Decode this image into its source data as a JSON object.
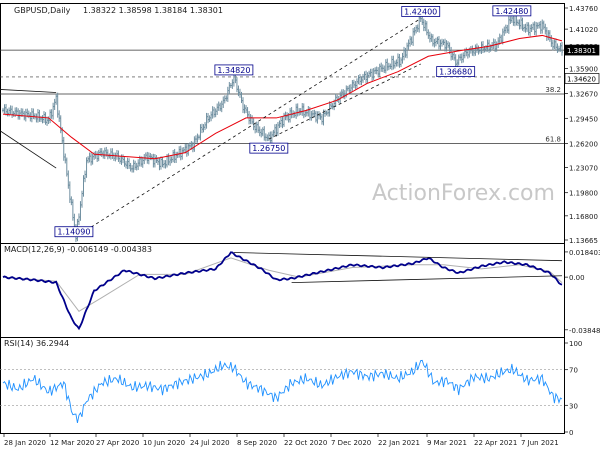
{
  "header": {
    "symbol": "GBPUSD,Daily",
    "ohlc": "1.38322 1.38598 1.38184 1.38301",
    "macd_label": "MACD(12,26,9) -0.006149 -0.004383",
    "rsi_label": "RSI(14) 36.2944",
    "watermark": "ActionForex.com"
  },
  "colors": {
    "bar": "#6f8fa0",
    "ma": "#e8000b",
    "macd": "#00008b",
    "signal": "#b0b0b0",
    "rsi": "#1e90ff",
    "text": "#1a1a1a",
    "label_box": "#00008b"
  },
  "chart_data": [
    {
      "type": "candlestick",
      "title": "GBPUSD,Daily",
      "ylim": [
        1.13665,
        1.4376
      ],
      "y_ticks": [
        "1.43760",
        "1.41020",
        "1.38830",
        "1.35900",
        "1.32670",
        "1.29450",
        "1.26200",
        "1.23070",
        "1.19800",
        "1.16800",
        "1.13665"
      ],
      "current_price": "1.38301",
      "x_tick_labels": [
        "28 Jan 2020",
        "12 Mar 2020",
        "27 Apr 2020",
        "10 Jun 2020",
        "24 Jul 2020",
        "8 Sep 2020",
        "22 Oct 2020",
        "7 Dec 2020",
        "22 Jan 2021",
        "9 Mar 2021",
        "22 Apr 2021",
        "7 Jun 2021"
      ],
      "price_path": [
        [
          0,
          1.305
        ],
        [
          10,
          1.301
        ],
        [
          20,
          1.298
        ],
        [
          30,
          1.292
        ],
        [
          35,
          1.32
        ],
        [
          45,
          1.18
        ],
        [
          48,
          1.1409
        ],
        [
          55,
          1.24
        ],
        [
          65,
          1.25
        ],
        [
          75,
          1.245
        ],
        [
          85,
          1.23
        ],
        [
          95,
          1.245
        ],
        [
          105,
          1.235
        ],
        [
          115,
          1.248
        ],
        [
          125,
          1.26
        ],
        [
          135,
          1.295
        ],
        [
          145,
          1.315
        ],
        [
          152,
          1.3482
        ],
        [
          158,
          1.31
        ],
        [
          165,
          1.285
        ],
        [
          175,
          1.2675
        ],
        [
          185,
          1.295
        ],
        [
          195,
          1.305
        ],
        [
          210,
          1.295
        ],
        [
          220,
          1.32
        ],
        [
          235,
          1.345
        ],
        [
          250,
          1.36
        ],
        [
          262,
          1.37
        ],
        [
          275,
          1.424
        ],
        [
          282,
          1.395
        ],
        [
          292,
          1.39
        ],
        [
          298,
          1.3668
        ],
        [
          305,
          1.38
        ],
        [
          315,
          1.385
        ],
        [
          325,
          1.39
        ],
        [
          335,
          1.4248
        ],
        [
          345,
          1.41
        ],
        [
          355,
          1.415
        ],
        [
          362,
          1.39
        ],
        [
          368,
          1.383
        ]
      ],
      "ma_path": [
        [
          0,
          1.3
        ],
        [
          30,
          1.295
        ],
        [
          45,
          1.27
        ],
        [
          60,
          1.248
        ],
        [
          80,
          1.245
        ],
        [
          100,
          1.242
        ],
        [
          120,
          1.25
        ],
        [
          140,
          1.275
        ],
        [
          160,
          1.295
        ],
        [
          180,
          1.295
        ],
        [
          200,
          1.305
        ],
        [
          220,
          1.318
        ],
        [
          240,
          1.34
        ],
        [
          260,
          1.355
        ],
        [
          280,
          1.375
        ],
        [
          300,
          1.382
        ],
        [
          320,
          1.388
        ],
        [
          340,
          1.398
        ],
        [
          355,
          1.402
        ],
        [
          368,
          1.395
        ]
      ],
      "price_labels": [
        {
          "text": "1.42400",
          "x": 275,
          "y": 1.424
        },
        {
          "text": "1.42480",
          "x": 335,
          "y": 1.4248
        },
        {
          "text": "1.34820",
          "x": 152,
          "y": 1.3482
        },
        {
          "text": "1.36680",
          "x": 298,
          "y": 1.3668
        },
        {
          "text": "1.26750",
          "x": 175,
          "y": 1.2675
        },
        {
          "text": "1.14090",
          "x": 48,
          "y": 1.1409
        }
      ],
      "h_lines": [
        {
          "y": 1.383,
          "style": "solid"
        },
        {
          "y": 1.3482,
          "style": "dashed"
        },
        {
          "y": 1.326,
          "style": "solid",
          "label": "38.2"
        },
        {
          "y": 1.262,
          "style": "solid",
          "label": "61.8"
        }
      ],
      "right_labels": [
        {
          "text": "1.38301",
          "y": 1.383,
          "boxed": "dark"
        },
        {
          "text": "1.34620",
          "y": 1.3462,
          "boxed": "light"
        }
      ],
      "trendlines": [
        {
          "from": [
            -30,
            1.335
          ],
          "to": [
            35,
            1.328
          ],
          "style": "solid"
        },
        {
          "from": [
            -30,
            1.315
          ],
          "to": [
            35,
            1.23
          ],
          "style": "solid"
        },
        {
          "from": [
            48,
            1.1409
          ],
          "to": [
            275,
            1.424
          ],
          "style": "dashed"
        },
        {
          "from": [
            175,
            1.2675
          ],
          "to": [
            275,
            1.365
          ],
          "style": "dashed"
        }
      ]
    },
    {
      "type": "line",
      "title": "MACD(12,26,9) -0.006149 -0.004383",
      "ylim": [
        -0.043,
        0.022
      ],
      "y_ticks": [
        "0.018403",
        "0.00",
        "-0.038483"
      ],
      "macd_path": [
        [
          0,
          0.0
        ],
        [
          20,
          -0.002
        ],
        [
          35,
          -0.004
        ],
        [
          45,
          -0.03
        ],
        [
          50,
          -0.038
        ],
        [
          60,
          -0.01
        ],
        [
          80,
          0.005
        ],
        [
          100,
          -0.001
        ],
        [
          120,
          0.003
        ],
        [
          140,
          0.006
        ],
        [
          150,
          0.018
        ],
        [
          170,
          0.006
        ],
        [
          180,
          -0.002
        ],
        [
          190,
          -0.001
        ],
        [
          210,
          0.004
        ],
        [
          230,
          0.009
        ],
        [
          250,
          0.007
        ],
        [
          270,
          0.01
        ],
        [
          280,
          0.014
        ],
        [
          290,
          0.007
        ],
        [
          300,
          0.003
        ],
        [
          315,
          0.008
        ],
        [
          330,
          0.011
        ],
        [
          345,
          0.009
        ],
        [
          360,
          0.003
        ],
        [
          368,
          -0.006
        ]
      ],
      "signal_path": [
        [
          0,
          0.0
        ],
        [
          35,
          -0.003
        ],
        [
          50,
          -0.025
        ],
        [
          65,
          -0.015
        ],
        [
          90,
          0.002
        ],
        [
          120,
          0.002
        ],
        [
          150,
          0.014
        ],
        [
          175,
          0.005
        ],
        [
          195,
          0.0
        ],
        [
          230,
          0.007
        ],
        [
          270,
          0.009
        ],
        [
          290,
          0.009
        ],
        [
          315,
          0.006
        ],
        [
          340,
          0.009
        ],
        [
          360,
          0.004
        ],
        [
          368,
          -0.004
        ]
      ],
      "trendlines": [
        {
          "from": [
            152,
            0.018
          ],
          "to": [
            368,
            0.012
          ]
        },
        {
          "from": [
            190,
            -0.004
          ],
          "to": [
            368,
            0.001
          ]
        }
      ]
    },
    {
      "type": "line",
      "title": "RSI(14) 36.2944",
      "ylim": [
        0,
        100
      ],
      "y_ticks": [
        "100",
        "70",
        "30",
        "0"
      ],
      "rsi_path": [
        [
          0,
          55
        ],
        [
          10,
          48
        ],
        [
          20,
          60
        ],
        [
          30,
          45
        ],
        [
          40,
          55
        ],
        [
          46,
          20
        ],
        [
          50,
          15
        ],
        [
          55,
          35
        ],
        [
          65,
          55
        ],
        [
          75,
          60
        ],
        [
          85,
          50
        ],
        [
          95,
          52
        ],
        [
          105,
          48
        ],
        [
          115,
          55
        ],
        [
          125,
          60
        ],
        [
          135,
          65
        ],
        [
          145,
          75
        ],
        [
          152,
          72
        ],
        [
          160,
          55
        ],
        [
          170,
          48
        ],
        [
          180,
          38
        ],
        [
          190,
          55
        ],
        [
          200,
          60
        ],
        [
          210,
          52
        ],
        [
          220,
          62
        ],
        [
          230,
          68
        ],
        [
          240,
          62
        ],
        [
          250,
          66
        ],
        [
          260,
          60
        ],
        [
          270,
          68
        ],
        [
          276,
          80
        ],
        [
          284,
          55
        ],
        [
          292,
          58
        ],
        [
          300,
          48
        ],
        [
          310,
          62
        ],
        [
          320,
          60
        ],
        [
          330,
          68
        ],
        [
          336,
          70
        ],
        [
          345,
          58
        ],
        [
          355,
          60
        ],
        [
          362,
          40
        ],
        [
          368,
          36
        ]
      ]
    }
  ]
}
